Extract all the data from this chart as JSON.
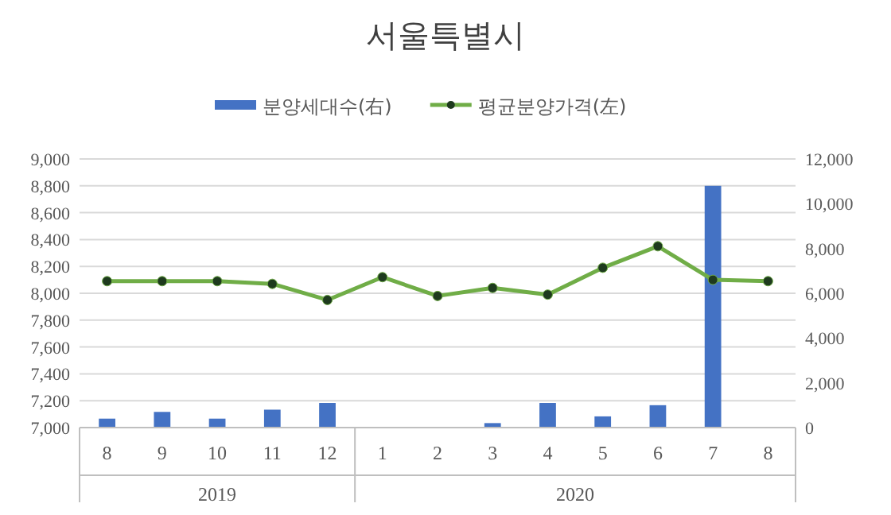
{
  "chart_data": {
    "type": "bar",
    "title": "서울특별시",
    "categories": [
      "8",
      "9",
      "10",
      "11",
      "12",
      "1",
      "2",
      "3",
      "4",
      "5",
      "6",
      "7",
      "8"
    ],
    "series": [
      {
        "name": "분양세대수(右)",
        "axis": "y2",
        "color": "#4472c4",
        "values": [
          400,
          700,
          400,
          800,
          1100,
          0,
          0,
          200,
          1100,
          500,
          1000,
          10800,
          0
        ]
      },
      {
        "name": "평균분양가격(左)",
        "type": "line",
        "axis": "y",
        "color": "#70ad47",
        "marker": "circle",
        "values": [
          8090,
          8090,
          8090,
          8070,
          7950,
          8120,
          7980,
          8040,
          7990,
          8190,
          8350,
          8100,
          8090
        ]
      }
    ],
    "ylim": [
      7000,
      9000
    ],
    "yticks": [
      {
        "value": 7000,
        "label": "7,000"
      },
      {
        "value": 7200,
        "label": "7,200"
      },
      {
        "value": 7400,
        "label": "7,400"
      },
      {
        "value": 7600,
        "label": "7,600"
      },
      {
        "value": 7800,
        "label": "7,800"
      },
      {
        "value": 8000,
        "label": "8,000"
      },
      {
        "value": 8200,
        "label": "8,200"
      },
      {
        "value": 8400,
        "label": "8,400"
      },
      {
        "value": 8600,
        "label": "8,600"
      },
      {
        "value": 8800,
        "label": "8,800"
      },
      {
        "value": 9000,
        "label": "9,000"
      }
    ],
    "y2lim": [
      0,
      12000
    ],
    "y2ticks": [
      0,
      {
        "value": 2000,
        "label": "2,000"
      },
      {
        "value": 4000,
        "label": "4,000"
      },
      {
        "value": 6000,
        "label": "6,000"
      },
      {
        "value": 8000,
        "label": "8,000"
      },
      {
        "value": 10000,
        "label": "10,000"
      },
      {
        "value": 12000,
        "label": "12,000"
      }
    ],
    "annotations": [
      "2019",
      "2020"
    ],
    "grid": "y",
    "legend": "top"
  }
}
